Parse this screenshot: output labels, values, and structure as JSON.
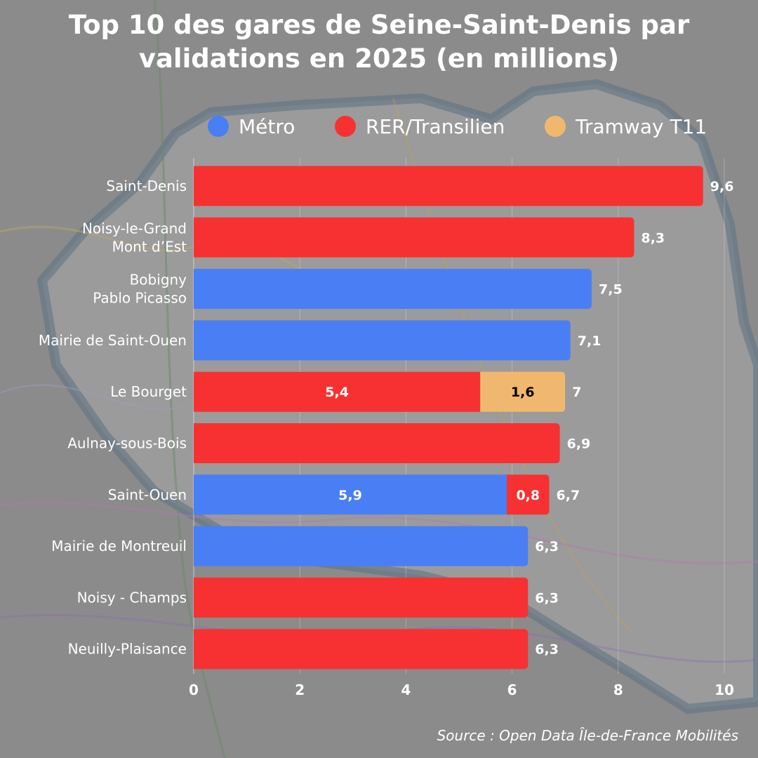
{
  "title_line1": "Top 10 des gares de Seine-Saint-Denis par",
  "title_line2": "validations en 2025 (en millions)",
  "source": "Source : Open Data Île-de-France Mobilités",
  "legend": [
    {
      "label": "Métro",
      "color": "#4a7ef5"
    },
    {
      "label": "RER/Transilien",
      "color": "#f73131"
    },
    {
      "label": "Tramway T11",
      "color": "#f0b86e"
    }
  ],
  "chart_data": {
    "type": "bar",
    "orientation": "horizontal",
    "stacked": true,
    "title": "Top 10 des gares de Seine-Saint-Denis par validations en 2025 (en millions)",
    "xlim": [
      0,
      10
    ],
    "x_ticks": [
      "0",
      "2",
      "4",
      "6",
      "8",
      "10"
    ],
    "grid": true,
    "legend_position": "top",
    "categories": [
      [
        "Saint-Denis"
      ],
      [
        "Noisy-le-Grand",
        "Mont d’Est"
      ],
      [
        "Bobigny",
        "Pablo Picasso"
      ],
      [
        "Mairie de Saint-Ouen"
      ],
      [
        "Le Bourget"
      ],
      [
        "Aulnay-sous-Bois"
      ],
      [
        "Saint-Ouen"
      ],
      [
        "Mairie de Montreuil"
      ],
      [
        "Noisy - Champs"
      ],
      [
        "Neuilly-Plaisance"
      ]
    ],
    "series": [
      {
        "name": "Métro",
        "color": "#4a7ef5",
        "values": [
          0,
          0,
          7.5,
          7.1,
          0,
          0,
          5.9,
          6.3,
          0,
          0
        ]
      },
      {
        "name": "RER/Transilien",
        "color": "#f73131",
        "values": [
          9.6,
          8.3,
          0,
          0,
          5.4,
          6.9,
          0.8,
          0,
          6.3,
          6.3
        ]
      },
      {
        "name": "Tramway T11",
        "color": "#f0b86e",
        "values": [
          0,
          0,
          0,
          0,
          1.6,
          0,
          0,
          0,
          0,
          0
        ]
      }
    ],
    "segment_labels": [
      [],
      [],
      [],
      [],
      [
        "5,4",
        "1,6"
      ],
      [],
      [
        "5,9",
        "0,8"
      ],
      [],
      [],
      []
    ],
    "total_labels": [
      "9,6",
      "8,3",
      "7,5",
      "7,1",
      "7",
      "6,9",
      "6,7",
      "6,3",
      "6,3",
      "6,3"
    ]
  }
}
